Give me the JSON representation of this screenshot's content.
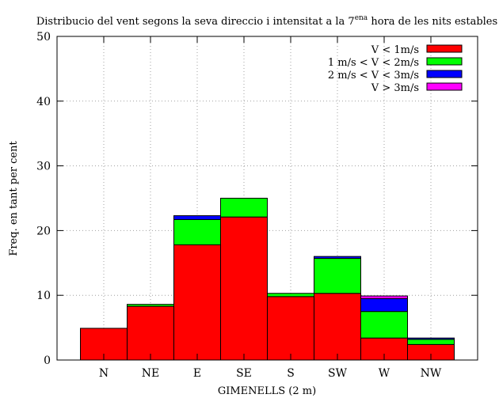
{
  "chart_data": {
    "type": "bar",
    "stacked": true,
    "title": {
      "main": "Distribucio del vent segons la seva direccio i intensitat a la 7",
      "superscript": "ena",
      "rest": " hora de les nits estables"
    },
    "xlabel": "GIMENELLS (2 m)",
    "ylabel": "Freq. en tant per cent",
    "ylim": [
      0,
      50
    ],
    "yticks": [
      0,
      10,
      20,
      30,
      40,
      50
    ],
    "grid": true,
    "legend_position": "top-right",
    "categories": [
      "N",
      "NE",
      "E",
      "SE",
      "S",
      "SW",
      "W",
      "NW"
    ],
    "series": [
      {
        "name": "V < 1m/s",
        "color": "#ff0000",
        "values": [
          4.9,
          8.3,
          17.8,
          22.1,
          9.8,
          10.3,
          3.4,
          2.4
        ]
      },
      {
        "name": "1 m/s < V < 2m/s",
        "color": "#00ff00",
        "values": [
          0.0,
          0.3,
          3.9,
          2.9,
          0.5,
          5.4,
          4.1,
          0.8
        ]
      },
      {
        "name": "2 m/s < V < 3m/s",
        "color": "#0000ff",
        "values": [
          0.0,
          0.0,
          0.6,
          0.0,
          0.0,
          0.3,
          2.0,
          0.2
        ]
      },
      {
        "name": "V > 3m/s",
        "color": "#ff00ff",
        "values": [
          0.0,
          0.0,
          0.0,
          0.0,
          0.0,
          0.0,
          0.4,
          0.0
        ]
      }
    ]
  }
}
